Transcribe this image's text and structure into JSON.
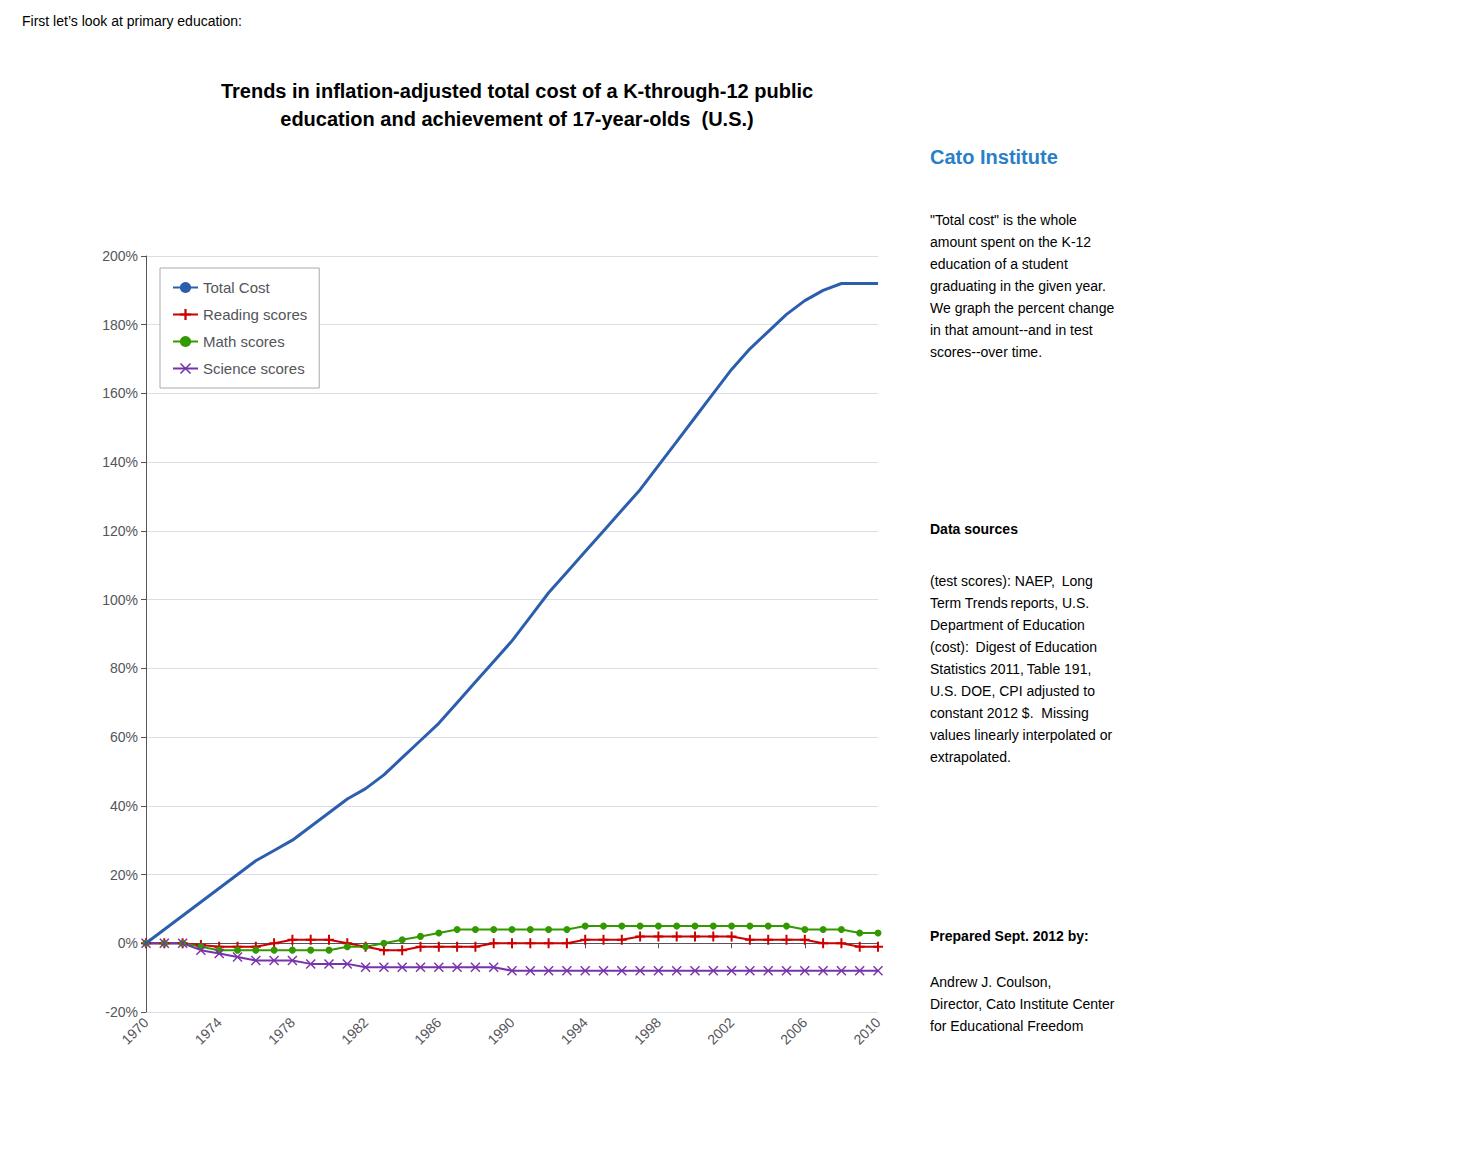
{
  "chart_data": {
    "type": "line",
    "title": "Trends in inflation-adjusted total cost of a K-through-12 public\neducation and achievement of 17-year-olds  (U.S.)",
    "annotations": [
      "First let’s look at primary education:",
      "Cato Institute",
      "\"Total cost\" is the whole\namount spent on the K-12\neducation of a student\ngraduating in the given year.\nWe graph the percent change\nin that amount--and in test\nscores--over time.",
      "Data sources",
      "(test scores): NAEP,  Long\nTerm Trends reports, U.S.\nDepartment of Education\n(cost):  Digest of Education\nStatistics 2011, Table 191,\nU.S. DOE, CPI adjusted to\nconstant 2012 $.  Missing\nvalues linearly interpolated or\nextrapolated.",
      "Prepared Sept. 2012 by:",
      "Andrew J. Coulson,\nDirector, Cato Institute Center\nfor Educational Freedom"
    ],
    "x": [
      1970,
      1971,
      1972,
      1973,
      1974,
      1975,
      1976,
      1977,
      1978,
      1979,
      1980,
      1981,
      1982,
      1983,
      1984,
      1985,
      1986,
      1987,
      1988,
      1989,
      1990,
      1991,
      1992,
      1993,
      1994,
      1995,
      1996,
      1997,
      1998,
      1999,
      2000,
      2001,
      2002,
      2003,
      2004,
      2005,
      2006,
      2007,
      2008,
      2009,
      2010
    ],
    "series": [
      {
        "name": "Total Cost",
        "color": "#2b5fad",
        "line_style": "solid",
        "values": [
          0,
          4,
          8,
          12,
          16,
          20,
          24,
          27,
          30,
          34,
          38,
          42,
          45,
          49,
          54,
          59,
          64,
          70,
          76,
          82,
          88,
          95,
          102,
          108,
          114,
          120,
          126,
          132,
          139,
          146,
          153,
          160,
          167,
          173,
          178,
          183,
          187,
          190,
          192,
          192,
          192
        ]
      },
      {
        "name": "Reading scores",
        "color": "#cc0000",
        "marker": "plus",
        "line_style": "solid",
        "values": [
          0,
          0,
          0,
          -0.5,
          -1,
          -1,
          -1,
          0,
          1,
          1,
          1,
          0,
          -1,
          -2,
          -2,
          -1,
          -1,
          -1,
          -1,
          0,
          0,
          0,
          0,
          0,
          1,
          1,
          1,
          2,
          2,
          2,
          2,
          2,
          2,
          1,
          1,
          1,
          1,
          0,
          0,
          -1,
          -1
        ]
      },
      {
        "name": "Math scores",
        "color": "#339900",
        "marker": "circle",
        "line_style": "solid",
        "values": [
          0,
          0,
          0,
          -1,
          -2,
          -2,
          -2,
          -2,
          -2,
          -2,
          -2,
          -1,
          -1,
          0,
          1,
          2,
          3,
          4,
          4,
          4,
          4,
          4,
          4,
          4,
          5,
          5,
          5,
          5,
          5,
          5,
          5,
          5,
          5,
          5,
          5,
          5,
          4,
          4,
          4,
          3,
          3
        ]
      },
      {
        "name": "Science scores",
        "color": "#7733aa",
        "marker": "x",
        "line_style": "solid",
        "values": [
          0,
          0,
          0,
          -2,
          -3,
          -4,
          -5,
          -5,
          -5,
          -6,
          -6,
          -6,
          -7,
          -7,
          -7,
          -7,
          -7,
          -7,
          -7,
          -7,
          -8,
          -8,
          -8,
          -8,
          -8,
          -8,
          -8,
          -8,
          -8,
          -8,
          -8,
          -8,
          -8,
          -8,
          -8,
          -8,
          -8,
          -8,
          -8,
          -8,
          -8
        ]
      }
    ],
    "xlim": [
      1970,
      2010
    ],
    "xticks": [
      1970,
      1974,
      1978,
      1982,
      1986,
      1990,
      1994,
      1998,
      2002,
      2006,
      2010
    ],
    "ylim": [
      -20,
      200
    ],
    "yticks": [
      {
        "value": -20,
        "label": "-20%"
      },
      {
        "value": 0,
        "label": "0%"
      },
      {
        "value": 20,
        "label": "20%"
      },
      {
        "value": 40,
        "label": "40%"
      },
      {
        "value": 60,
        "label": "60%"
      },
      {
        "value": 80,
        "label": "80%"
      },
      {
        "value": 100,
        "label": "100%"
      },
      {
        "value": 120,
        "label": "120%"
      },
      {
        "value": 140,
        "label": "140%"
      },
      {
        "value": 160,
        "label": "160%"
      },
      {
        "value": 180,
        "label": "180%"
      },
      {
        "value": 200,
        "label": "200%"
      }
    ],
    "grid": true,
    "legend": "upper left"
  }
}
